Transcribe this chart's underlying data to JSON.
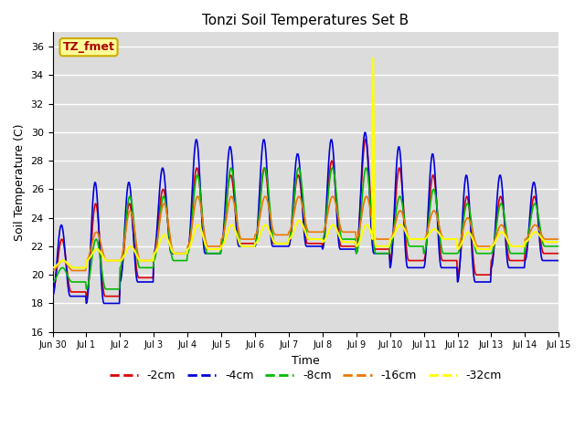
{
  "title": "Tonzi Soil Temperatures Set B",
  "xlabel": "Time",
  "ylabel": "Soil Temperature (C)",
  "ylim": [
    16,
    37
  ],
  "background_color": "#dcdcdc",
  "annotation_text": "TZ_fmet",
  "annotation_bg": "#ffff99",
  "annotation_border": "#ccaa00",
  "annotation_text_color": "#aa0000",
  "colors": {
    "-2cm": "#dd0000",
    "-4cm": "#0000dd",
    "-8cm": "#00bb00",
    "-16cm": "#ee7700",
    "-32cm": "#ffff00"
  },
  "legend_labels": [
    "-2cm",
    "-4cm",
    "-8cm",
    "-16cm",
    "-32cm"
  ],
  "tick_labels": [
    "Jun 30",
    "Jul 1",
    "Jul 2",
    "Jul 3",
    "Jul 4",
    "Jul 5",
    "Jul 6",
    "Jul 7",
    "Jul 8",
    "Jul 9",
    "Jul 10",
    "Jul 11",
    "Jul 12",
    "Jul 13",
    "Jul 14",
    "Jul 15"
  ],
  "yticks": [
    16,
    18,
    20,
    22,
    24,
    26,
    28,
    30,
    32,
    34,
    36
  ],
  "figsize": [
    6.4,
    4.8
  ],
  "dpi": 100
}
